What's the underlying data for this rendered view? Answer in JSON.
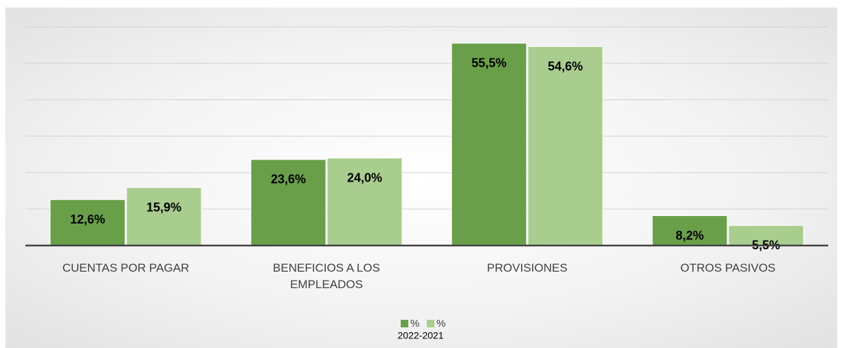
{
  "chart_data": {
    "type": "bar",
    "categories": [
      "CUENTAS POR PAGAR",
      "BENEFICIOS A LOS EMPLEADOS",
      "PROVISIONES",
      "OTROS PASIVOS"
    ],
    "series": [
      {
        "name": "%",
        "color": "#6a9f4a",
        "values": [
          12.6,
          23.6,
          55.5,
          8.2
        ],
        "value_labels": [
          "12,6%",
          "23,6%",
          "55,5%",
          "8,2%"
        ]
      },
      {
        "name": "%",
        "color": "#a9cc8f",
        "values": [
          15.9,
          24.0,
          54.6,
          5.5
        ],
        "value_labels": [
          "15,9%",
          "24,0%",
          "54,6%",
          "5,5%"
        ]
      }
    ],
    "legend_title": "2022-2021",
    "ylim": [
      0,
      60
    ],
    "yticks": [
      0,
      10,
      20,
      30,
      40,
      50,
      60
    ],
    "grid": true,
    "legend": "bottom"
  }
}
